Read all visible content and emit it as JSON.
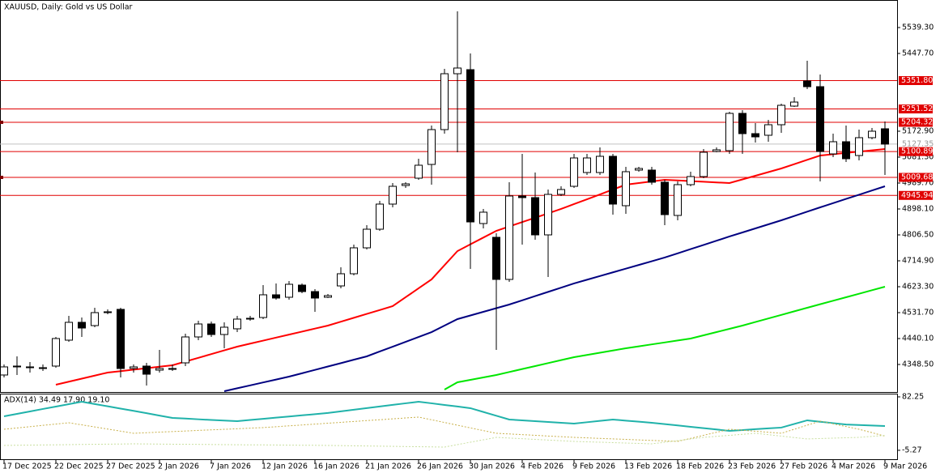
{
  "chart_data": [
    {
      "type": "candlestick",
      "title": "XAUUSD, Daily:  Gold vs US Dollar",
      "categories": [
        "17 Dec 2025",
        null,
        null,
        null,
        "22 Dec 2025",
        null,
        null,
        null,
        "27 Dec 2025",
        null,
        null,
        null,
        "2 Jan 2026",
        null,
        null,
        null,
        "7 Jan 2026",
        null,
        null,
        null,
        "12 Jan 2026",
        null,
        null,
        null,
        "16 Jan 2026",
        null,
        null,
        null,
        "21 Jan 2026",
        null,
        null,
        null,
        "26 Jan 2026",
        null,
        null,
        null,
        "30 Jan 2026",
        null,
        null,
        null,
        "4 Feb 2026",
        null,
        null,
        null,
        "9 Feb 2026",
        null,
        null,
        null,
        "13 Feb 2026",
        null,
        null,
        null,
        "18 Feb 2026",
        null,
        null,
        null,
        "23 Feb 2026",
        null,
        null,
        null,
        "27 Feb 2026",
        null,
        null,
        null,
        "4 Mar 2026",
        null,
        null,
        null,
        "9 Mar 2026"
      ],
      "open": [
        4311.3,
        4339.9,
        4337.1,
        4334.2,
        4342.8,
        4434.4,
        4497.4,
        4485.9,
        4531.7,
        4543.2,
        4334.2,
        4342.8,
        4328.5,
        4331.3,
        4354.2,
        4445.8,
        4491.6,
        4454.4,
        4474.5,
        4508.8,
        4514.5,
        4594.7,
        4586.1,
        4629.0,
        4606.1,
        4586.1,
        4626.1,
        4669.1,
        4760.7,
        4826.5,
        4915.3,
        4981.1,
        5006.9,
        5055.5,
        5178.6,
        5376.1,
        5390.4,
        4846.6,
        4797.9,
        4649.1,
        4943.9,
        4938.2,
        4806.5,
        4949.6,
        4978.2,
        5026.9,
        5026.9,
        5084.2,
        4909.6,
        5035.5,
        5035.5,
        4992.6,
        4875.2,
        4984.0,
        5012.6,
        5101.3,
        5104.2,
        5235.9,
        5164.3,
        5158.6,
        5195.8,
        5261.6,
        5350.4,
        5330.3,
        5092.7,
        5135.7,
        5087.0,
        5150.0,
        5181.5
      ],
      "high": [
        4348.5,
        4377.1,
        4357.1,
        4348.5,
        4445.8,
        4520.3,
        4514.5,
        4548.9,
        4543.2,
        4548.9,
        4348.5,
        4354.2,
        4400.0,
        4348.5,
        4457.3,
        4503.1,
        4500.2,
        4497.4,
        4520.3,
        4520.3,
        4629.0,
        4634.8,
        4643.3,
        4634.8,
        4614.7,
        4597.6,
        4692.0,
        4772.2,
        4840.9,
        4926.7,
        4989.7,
        4992.6,
        5075.6,
        5192.9,
        5393.3,
        5596.5,
        5447.7,
        4898.1,
        4812.2,
        4992.6,
        5092.7,
        5026.9,
        4966.8,
        4978.2,
        5092.7,
        5092.7,
        5115.6,
        5092.7,
        5047.0,
        5047.0,
        5047.0,
        5001.2,
        4995.4,
        5029.8,
        5109.9,
        5115.6,
        5241.6,
        5247.3,
        5201.5,
        5213.0,
        5270.2,
        5293.1,
        5421.9,
        5373.3,
        5164.3,
        5192.9,
        5178.6,
        5184.3,
        5207.3
      ],
      "low": [
        4302.7,
        4311.3,
        4319.9,
        4325.6,
        4337.1,
        4428.7,
        4445.8,
        4480.2,
        4526.0,
        4302.7,
        4319.9,
        4274.1,
        4319.9,
        4325.6,
        4342.8,
        4434.4,
        4445.8,
        4405.7,
        4463.0,
        4503.1,
        4508.8,
        4577.5,
        4577.5,
        4600.4,
        4534.6,
        4583.2,
        4617.6,
        4663.4,
        4755.0,
        4820.8,
        4903.8,
        4972.5,
        5001.2,
        4984.0,
        5164.3,
        5098.5,
        4686.3,
        4829.4,
        4400.0,
        4640.5,
        4772.2,
        4789.3,
        4657.7,
        4943.9,
        4972.5,
        5018.3,
        5018.3,
        4878.1,
        4880.9,
        5029.8,
        4984.0,
        4840.9,
        4858.0,
        4978.2,
        5006.9,
        5098.5,
        5092.7,
        5092.7,
        5132.8,
        5135.7,
        5167.2,
        5258.8,
        5321.7,
        4995.4,
        5081.3,
        5064.1,
        5069.9,
        5144.3,
        5018.3
      ],
      "close": [
        4339.9,
        4342.8,
        4339.9,
        4337.1,
        4440.1,
        4497.4,
        4477.3,
        4531.7,
        4534.6,
        4334.2,
        4339.9,
        4314.1,
        4334.2,
        4334.2,
        4445.8,
        4491.6,
        4454.4,
        4480.2,
        4508.8,
        4511.7,
        4594.7,
        4583.2,
        4631.9,
        4606.1,
        4583.2,
        4591.8,
        4669.1,
        4760.7,
        4826.5,
        4915.3,
        4978.2,
        4986.8,
        5052.7,
        5178.6,
        5376.1,
        5396.2,
        4852.3,
        4886.7,
        4649.1,
        4943.9,
        4938.2,
        4806.5,
        4949.6,
        4966.8,
        5078.4,
        5078.4,
        5084.2,
        4915.3,
        5029.8,
        5041.2,
        4992.6,
        4878.1,
        4984.0,
        5012.6,
        5098.5,
        5107.1,
        5235.9,
        5164.3,
        5152.9,
        5195.8,
        5264.5,
        5275.9,
        5330.3,
        5101.3,
        5135.7,
        5075.6,
        5150.0,
        5172.9,
        5127.35
      ],
      "series": [
        {
          "color": "#ff0000",
          "values": [
            null,
            null,
            null,
            null,
            4276.9,
            4287.6,
            4298.4,
            4309.1,
            4319.9,
            4325.0,
            4330.2,
            4335.3,
            4340.5,
            4345.6,
            4358.8,
            4372.0,
            4385.1,
            4398.3,
            4411.5,
            4422.1,
            4432.7,
            4443.4,
            4454.0,
            4464.6,
            4475.3,
            4485.9,
            4499.6,
            4513.4,
            4527.1,
            4540.9,
            4554.6,
            4586.1,
            4617.6,
            4649.1,
            4699.2,
            4749.2,
            4773.1,
            4797.0,
            4820.8,
            4836.3,
            4851.7,
            4867.2,
            4882.6,
            4898.1,
            4915.3,
            4932.4,
            4949.6,
            4966.8,
            4983.9,
            4989.7,
            4995.4,
            5001.2,
            4998.9,
            4996.6,
            4994.3,
            4992.0,
            4989.7,
            5002.6,
            5015.5,
            5028.3,
            5041.2,
            5056.5,
            5071.7,
            5087.0,
            5091.6,
            5096.2,
            5100.8,
            5105.4,
            5110.0
          ]
        },
        {
          "color": "#000080",
          "values": [
            null,
            null,
            null,
            null,
            null,
            null,
            null,
            null,
            null,
            null,
            null,
            null,
            null,
            null,
            null,
            null,
            null,
            4254.0,
            4264.3,
            4274.6,
            4284.9,
            4295.2,
            4305.5,
            4317.4,
            4329.4,
            4341.3,
            4353.2,
            4365.2,
            4377.1,
            4394.3,
            4411.4,
            4428.6,
            4445.7,
            4462.9,
            4485.9,
            4508.8,
            4521.7,
            4534.6,
            4547.4,
            4560.3,
            4575.2,
            4590.1,
            4605.0,
            4619.9,
            4634.8,
            4647.9,
            4661.0,
            4674.1,
            4687.1,
            4700.2,
            4713.3,
            4726.4,
            4741.3,
            4756.2,
            4771.0,
            4785.9,
            4800.8,
            4815.1,
            4829.4,
            4843.7,
            4858.0,
            4873.3,
            4888.5,
            4903.8,
            4918.7,
            4933.6,
            4948.4,
            4963.3,
            4978.2
          ]
        },
        {
          "color": "#00e600",
          "values": [
            null,
            null,
            null,
            null,
            null,
            null,
            null,
            null,
            null,
            null,
            null,
            null,
            null,
            null,
            null,
            null,
            null,
            null,
            null,
            null,
            null,
            null,
            null,
            null,
            null,
            null,
            null,
            null,
            null,
            null,
            null,
            null,
            null,
            null,
            4259.7,
            4285.5,
            4294.1,
            4302.7,
            4311.3,
            4321.8,
            4332.3,
            4342.8,
            4353.3,
            4363.8,
            4374.3,
            4382.2,
            4390.0,
            4397.9,
            4405.7,
            4412.6,
            4419.5,
            4426.3,
            4433.2,
            4440.1,
            4451.6,
            4463.0,
            4474.5,
            4485.9,
            4498.5,
            4511.1,
            4523.7,
            4536.3,
            4548.9,
            4561.3,
            4573.7,
            4586.1,
            4598.5,
            4610.9,
            4623.3
          ]
        }
      ],
      "levels": [
        {
          "value": 5351.8,
          "label": "5351.80"
        },
        {
          "value": 5251.52,
          "label": "5251.52"
        },
        {
          "value": 5204.32,
          "label": "5204.32"
        },
        {
          "value": 5100.89,
          "label": "5100.89"
        },
        {
          "value": 5009.68,
          "label": "5009.68"
        },
        {
          "value": 4945.94,
          "label": "4945.94"
        }
      ],
      "level_color": "#e00000",
      "current_price": {
        "value": 5127.35,
        "label": "5127.35"
      },
      "ylim": [
        4254.0,
        5630.9
      ],
      "yticks": [
        {
          "value": 5539.3,
          "label": "5539.30"
        },
        {
          "value": 5447.7,
          "label": "5447.70"
        },
        {
          "value": 5172.9,
          "label": "5172.90"
        },
        {
          "value": 5081.3,
          "label": "5081.30"
        },
        {
          "value": 4989.7,
          "label": "4989.70"
        },
        {
          "value": 4898.1,
          "label": "4898.10"
        },
        {
          "value": 4806.5,
          "label": "4806.50"
        },
        {
          "value": 4714.9,
          "label": "4714.90"
        },
        {
          "value": 4623.3,
          "label": "4623.30"
        },
        {
          "value": 4531.7,
          "label": "4531.70"
        },
        {
          "value": 4440.1,
          "label": "4440.10"
        },
        {
          "value": 4348.5,
          "label": "4348.50"
        }
      ]
    },
    {
      "type": "line",
      "title": "ADX(14) 34.49 17.90 19.10",
      "series": [
        {
          "color": "#20b2aa",
          "values": [
            50.4,
            54.4,
            58.4,
            62.4,
            66.3,
            70.3,
            74.3,
            70.5,
            66.8,
            63.0,
            59.3,
            55.5,
            51.6,
            47.8,
            46.7,
            45.5,
            44.4,
            43.5,
            42.5,
            44.4,
            46.3,
            48.2,
            50.1,
            52.0,
            53.9,
            55.8,
            58.5,
            61.1,
            63.8,
            66.4,
            69.1,
            71.7,
            74.3,
            71.7,
            69.0,
            66.4,
            63.7,
            57.5,
            51.3,
            45.1,
            43.8,
            42.5,
            41.1,
            39.8,
            38.5,
            40.7,
            42.9,
            45.1,
            43.3,
            41.6,
            39.8,
            37.6,
            35.4,
            33.2,
            31.0,
            28.8,
            26.6,
            27.9,
            29.3,
            30.6,
            31.9,
            37.9,
            43.8,
            41.5,
            39.2,
            36.9,
            36.1,
            35.3,
            34.49
          ]
        },
        {
          "color": "#c8b04a",
          "dash": true,
          "values": [
            29.2,
            31.3,
            33.4,
            35.6,
            37.7,
            39.8,
            36.4,
            33.0,
            29.5,
            26.1,
            22.6,
            23.5,
            24.5,
            25.4,
            26.3,
            27.3,
            28.2,
            29.1,
            30.0,
            31.0,
            31.9,
            33.3,
            34.8,
            36.2,
            37.6,
            39.1,
            40.5,
            41.9,
            43.4,
            44.8,
            46.2,
            47.7,
            49.1,
            44.7,
            40.3,
            35.8,
            31.4,
            27.0,
            22.6,
            21.5,
            20.4,
            19.3,
            18.1,
            17.0,
            15.9,
            15.1,
            14.2,
            13.4,
            12.6,
            11.7,
            10.9,
            10.1,
            9.3,
            14.3,
            19.3,
            24.2,
            29.2,
            27.6,
            25.9,
            24.3,
            22.6,
            29.2,
            35.9,
            42.5,
            38.1,
            33.6,
            29.2,
            23.6,
            17.9
          ]
        },
        {
          "color": "#c9dfa0",
          "dash": true,
          "values": [
            2.7,
            3.0,
            3.2,
            3.5,
            3.7,
            4.0,
            4.3,
            4.5,
            4.8,
            5.0,
            5.3,
            5.1,
            4.9,
            4.7,
            4.6,
            4.4,
            4.2,
            4.0,
            3.8,
            3.6,
            3.6,
            3.4,
            3.2,
            3.0,
            2.9,
            2.7,
            2.4,
            2.1,
            1.8,
            1.5,
            1.2,
            0.9,
            0.6,
            0.3,
            0.0,
            4.0,
            8.0,
            11.9,
            15.9,
            14.8,
            13.7,
            12.6,
            11.5,
            10.4,
            9.3,
            8.6,
            8.0,
            7.3,
            6.6,
            6.0,
            5.3,
            7.9,
            10.6,
            13.2,
            15.9,
            17.6,
            19.2,
            20.9,
            22.6,
            20.3,
            18.0,
            15.6,
            13.3,
            14.0,
            14.6,
            15.3,
            15.9,
            17.5,
            19.1
          ]
        }
      ],
      "ylim": [
        -19.9,
        86.2
      ],
      "yticks": [
        {
          "value": 82.25,
          "label": "82.25"
        },
        {
          "value": -5.27,
          "label": "-5.27"
        }
      ]
    }
  ]
}
